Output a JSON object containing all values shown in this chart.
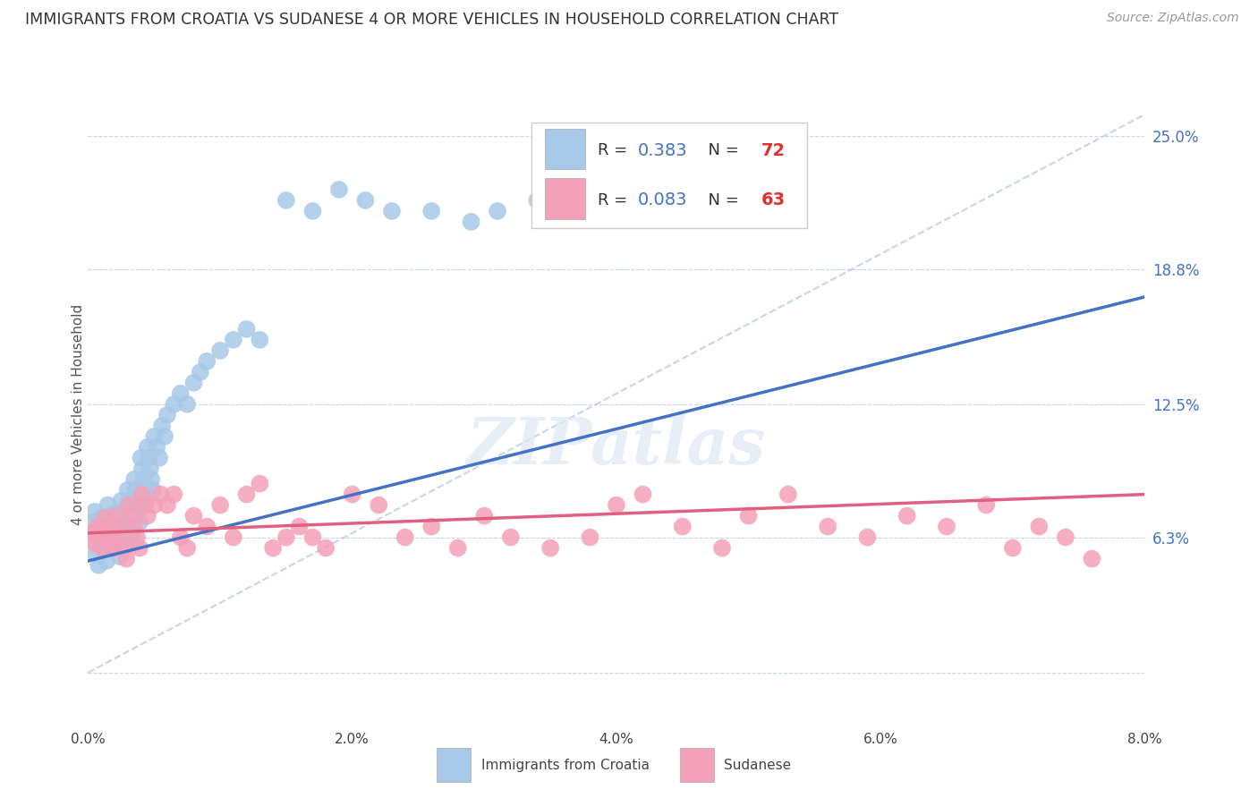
{
  "title": "IMMIGRANTS FROM CROATIA VS SUDANESE 4 OR MORE VEHICLES IN HOUSEHOLD CORRELATION CHART",
  "source": "Source: ZipAtlas.com",
  "ylabel": "4 or more Vehicles in Household",
  "x_min": 0.0,
  "x_max": 0.08,
  "y_min": -0.025,
  "y_max": 0.265,
  "x_ticks": [
    0.0,
    0.02,
    0.04,
    0.06,
    0.08
  ],
  "x_tick_labels": [
    "0.0%",
    "2.0%",
    "4.0%",
    "6.0%",
    "8.0%"
  ],
  "y_tick_positions": [
    0.0,
    0.063,
    0.125,
    0.188,
    0.25
  ],
  "y_tick_labels": [
    "",
    "6.3%",
    "12.5%",
    "18.8%",
    "25.0%"
  ],
  "croatia_R": 0.383,
  "croatia_N": 72,
  "sudanese_R": 0.083,
  "sudanese_N": 63,
  "croatia_color": "#a8c8e8",
  "sudanese_color": "#f4a0b8",
  "croatia_line_color": "#4472c4",
  "sudanese_line_color": "#e06080",
  "watermark": "ZIPatlas",
  "croatia_x": [
    0.0003,
    0.0004,
    0.0005,
    0.0006,
    0.0007,
    0.0008,
    0.0009,
    0.001,
    0.0011,
    0.0012,
    0.0013,
    0.0014,
    0.0015,
    0.0016,
    0.0017,
    0.0018,
    0.0019,
    0.002,
    0.0021,
    0.0022,
    0.0023,
    0.0024,
    0.0025,
    0.0026,
    0.0027,
    0.0028,
    0.0029,
    0.003,
    0.0031,
    0.0032,
    0.0033,
    0.0034,
    0.0035,
    0.0036,
    0.0037,
    0.0038,
    0.0039,
    0.004,
    0.0041,
    0.0042,
    0.0043,
    0.0044,
    0.0045,
    0.0046,
    0.0047,
    0.0048,
    0.0049,
    0.005,
    0.0052,
    0.0054,
    0.0056,
    0.0058,
    0.006,
    0.0065,
    0.007,
    0.0075,
    0.008,
    0.0085,
    0.009,
    0.01,
    0.011,
    0.012,
    0.013,
    0.015,
    0.017,
    0.019,
    0.021,
    0.023,
    0.026,
    0.029,
    0.031,
    0.034
  ],
  "croatia_y": [
    0.07,
    0.065,
    0.075,
    0.055,
    0.06,
    0.05,
    0.065,
    0.072,
    0.068,
    0.063,
    0.058,
    0.052,
    0.078,
    0.073,
    0.068,
    0.063,
    0.058,
    0.074,
    0.069,
    0.064,
    0.059,
    0.054,
    0.08,
    0.075,
    0.07,
    0.065,
    0.06,
    0.085,
    0.08,
    0.075,
    0.07,
    0.065,
    0.09,
    0.085,
    0.08,
    0.075,
    0.07,
    0.1,
    0.095,
    0.09,
    0.085,
    0.08,
    0.105,
    0.1,
    0.095,
    0.09,
    0.085,
    0.11,
    0.105,
    0.1,
    0.115,
    0.11,
    0.12,
    0.125,
    0.13,
    0.125,
    0.135,
    0.14,
    0.145,
    0.15,
    0.155,
    0.16,
    0.155,
    0.22,
    0.215,
    0.225,
    0.22,
    0.215,
    0.215,
    0.21,
    0.215,
    0.22
  ],
  "sudanese_x": [
    0.0003,
    0.0005,
    0.0007,
    0.0009,
    0.0011,
    0.0013,
    0.0015,
    0.0017,
    0.0019,
    0.0021,
    0.0023,
    0.0025,
    0.0027,
    0.0029,
    0.0031,
    0.0033,
    0.0035,
    0.0037,
    0.0039,
    0.0041,
    0.0043,
    0.0045,
    0.005,
    0.0055,
    0.006,
    0.0065,
    0.007,
    0.0075,
    0.008,
    0.009,
    0.01,
    0.011,
    0.012,
    0.013,
    0.014,
    0.015,
    0.016,
    0.017,
    0.018,
    0.02,
    0.022,
    0.024,
    0.026,
    0.028,
    0.03,
    0.032,
    0.035,
    0.038,
    0.04,
    0.042,
    0.045,
    0.048,
    0.05,
    0.053,
    0.056,
    0.059,
    0.062,
    0.065,
    0.068,
    0.07,
    0.072,
    0.074,
    0.076
  ],
  "sudanese_y": [
    0.065,
    0.06,
    0.068,
    0.063,
    0.058,
    0.072,
    0.068,
    0.063,
    0.058,
    0.073,
    0.068,
    0.063,
    0.058,
    0.053,
    0.078,
    0.073,
    0.068,
    0.063,
    0.058,
    0.083,
    0.078,
    0.073,
    0.078,
    0.083,
    0.078,
    0.083,
    0.063,
    0.058,
    0.073,
    0.068,
    0.078,
    0.063,
    0.083,
    0.088,
    0.058,
    0.063,
    0.068,
    0.063,
    0.058,
    0.083,
    0.078,
    0.063,
    0.068,
    0.058,
    0.073,
    0.063,
    0.058,
    0.063,
    0.078,
    0.083,
    0.068,
    0.058,
    0.073,
    0.083,
    0.068,
    0.063,
    0.073,
    0.068,
    0.078,
    0.058,
    0.068,
    0.063,
    0.053
  ]
}
